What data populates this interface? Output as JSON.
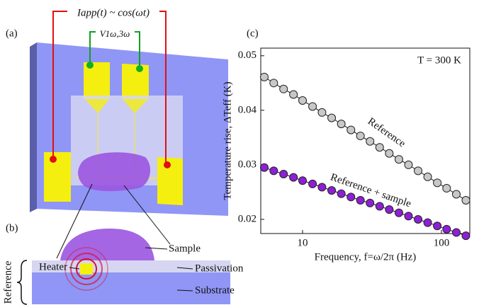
{
  "diagram": {
    "panel_a": "(a)",
    "panel_b": "(b)",
    "current_label": "Iapp(t) ~ cos(ωt)",
    "voltage_label": "V1ω,3ω",
    "sample": "Sample",
    "heater": "Heater",
    "passivation": "Passivation",
    "substrate": "Substrate",
    "reference": "Reference"
  },
  "chart_data": {
    "type": "scatter",
    "panel": "(c)",
    "x_label": "Frequency, f=ω/2π (Hz)",
    "y_label": "Temperature rise, ΔTeff (K)",
    "annotation": "T = 300 K",
    "log_x": true,
    "xlim": [
      5,
      160
    ],
    "xticks": [
      10,
      100
    ],
    "ylim": [
      0.0174,
      0.0514
    ],
    "yticks": [
      0.02,
      0.03,
      0.04,
      0.05
    ],
    "x": [
      5.3,
      6.2,
      7.3,
      8.6,
      10.0,
      11.8,
      13.8,
      16.2,
      19.0,
      22.3,
      26.1,
      30.6,
      35.9,
      42.1,
      49.4,
      57.9,
      67.9,
      79.6,
      93.3,
      109,
      128,
      150
    ],
    "series": [
      {
        "name": "Reference",
        "color": "#c8c8c8",
        "values": [
          0.0461,
          0.045,
          0.0439,
          0.0429,
          0.0418,
          0.0407,
          0.0396,
          0.0386,
          0.0375,
          0.0364,
          0.0353,
          0.0343,
          0.0332,
          0.0321,
          0.031,
          0.03,
          0.0289,
          0.0278,
          0.0267,
          0.0257,
          0.0246,
          0.0235
        ]
      },
      {
        "name": "Reference + sample",
        "color": "#8e1fd6",
        "values": [
          0.0295,
          0.0289,
          0.0283,
          0.0277,
          0.0271,
          0.0265,
          0.0259,
          0.0253,
          0.0247,
          0.0241,
          0.0235,
          0.023,
          0.0224,
          0.0218,
          0.0212,
          0.0206,
          0.02,
          0.0194,
          0.0188,
          0.0182,
          0.0176,
          0.017
        ]
      }
    ]
  }
}
